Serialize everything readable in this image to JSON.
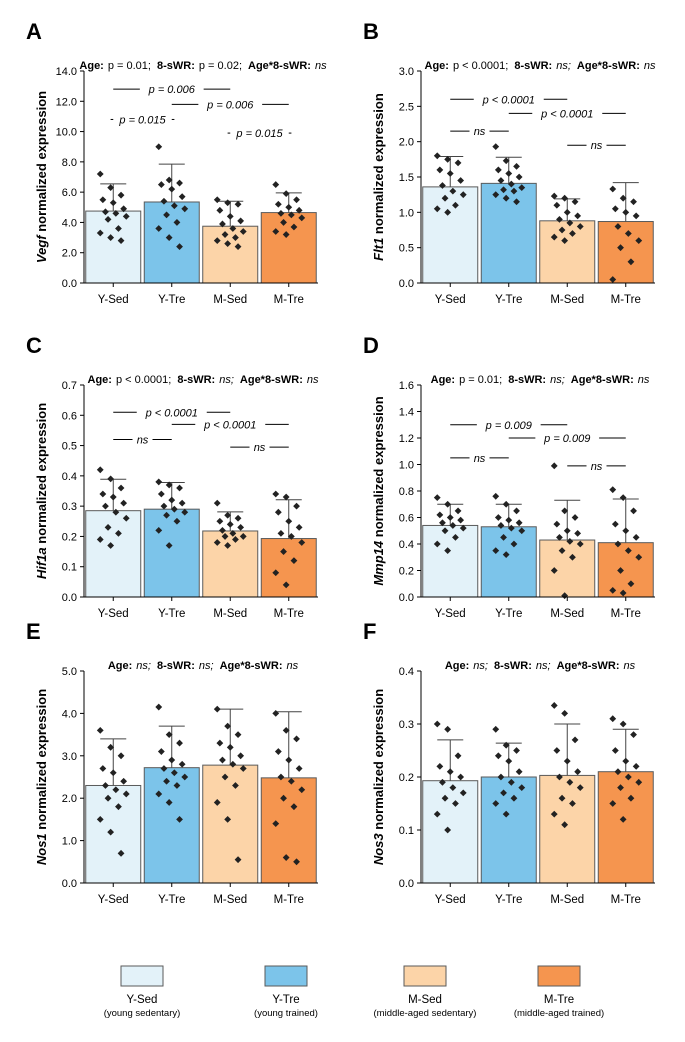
{
  "groups": [
    "Y-Sed",
    "Y-Tre",
    "M-Sed",
    "M-Tre"
  ],
  "legend": [
    {
      "name": "Y-Sed",
      "desc": "(young sedentary)"
    },
    {
      "name": "Y-Tre",
      "desc": "(young trained)"
    },
    {
      "name": "M-Sed",
      "desc": "(middle-aged sedentary)"
    },
    {
      "name": "M-Tre",
      "desc": "(middle-aged trained)"
    }
  ],
  "colors": {
    "Y-Sed": "#e3f2f9",
    "Y-Tre": "#7cc4ea",
    "M-Sed": "#fcd4a8",
    "M-Tre": "#f5954f",
    "points": "#222222",
    "axis": "#000000"
  },
  "chart_data": [
    {
      "panel": "A",
      "type": "bar",
      "gene": "Vegf",
      "ylabel_suffix": " normalized expression",
      "stats": [
        {
          "label": "Age:",
          "value": "p = 0.01;"
        },
        {
          "label": "8-sWR:",
          "value": "p = 0.02;"
        },
        {
          "label": "Age*8-sWR:",
          "value": "ns"
        }
      ],
      "ylim": [
        0,
        14
      ],
      "yticks": [
        0,
        2,
        4,
        6,
        8,
        10,
        12,
        14
      ],
      "tick_decimals": 1,
      "categories": [
        "Y-Sed",
        "Y-Tre",
        "M-Sed",
        "M-Tre"
      ],
      "values": [
        4.75,
        5.35,
        3.75,
        4.65
      ],
      "errors": [
        6.55,
        7.85,
        5.4,
        5.95
      ],
      "points": [
        [
          7.2,
          6.3,
          5.8,
          5.5,
          5.3,
          4.9,
          4.7,
          4.6,
          4.4,
          4.2,
          3.6,
          3.3,
          3.0,
          2.8
        ],
        [
          9.0,
          6.8,
          6.6,
          6.5,
          6.2,
          5.7,
          5.4,
          5.1,
          4.9,
          4.5,
          4.0,
          3.6,
          3.0,
          2.4
        ],
        [
          5.5,
          5.3,
          5.2,
          4.8,
          4.4,
          4.1,
          3.9,
          3.6,
          3.4,
          3.2,
          3.0,
          2.8,
          2.6,
          2.4
        ],
        [
          6.5,
          5.9,
          5.5,
          5.2,
          5.0,
          4.8,
          4.6,
          4.5,
          4.3,
          4.0,
          3.7,
          3.4,
          3.2
        ]
      ],
      "comparisons": [
        {
          "i": 0,
          "j": 2,
          "label": "p = 0.006",
          "y": 12.8
        },
        {
          "i": 1,
          "j": 3,
          "label": "p = 0.006",
          "y": 11.8
        },
        {
          "i": 0,
          "j": 1,
          "label": "p = 0.015",
          "y": 10.8
        },
        {
          "i": 2,
          "j": 3,
          "label": "p = 0.015",
          "y": 9.9
        }
      ]
    },
    {
      "panel": "B",
      "type": "bar",
      "gene": "Flt1",
      "ylabel_suffix": " normalized expression",
      "stats": [
        {
          "label": "Age:",
          "value": "p < 0.0001;"
        },
        {
          "label": "8-sWR:",
          "value": "ns;"
        },
        {
          "label": "Age*8-sWR:",
          "value": "ns"
        }
      ],
      "ylim": [
        0,
        3
      ],
      "yticks": [
        0,
        0.5,
        1,
        1.5,
        2,
        2.5,
        3
      ],
      "tick_decimals": 1,
      "categories": [
        "Y-Sed",
        "Y-Tre",
        "M-Sed",
        "M-Tre"
      ],
      "values": [
        1.36,
        1.41,
        0.88,
        0.87
      ],
      "errors": [
        1.79,
        1.78,
        1.19,
        1.42
      ],
      "points": [
        [
          1.8,
          1.75,
          1.7,
          1.6,
          1.55,
          1.45,
          1.38,
          1.3,
          1.25,
          1.2,
          1.1,
          1.05,
          1.0
        ],
        [
          1.93,
          1.73,
          1.65,
          1.6,
          1.55,
          1.5,
          1.45,
          1.4,
          1.35,
          1.32,
          1.3,
          1.25,
          1.2,
          1.15
        ],
        [
          1.23,
          1.2,
          1.15,
          1.1,
          1.0,
          0.95,
          0.9,
          0.85,
          0.8,
          0.75,
          0.7,
          0.65,
          0.6
        ],
        [
          1.33,
          1.2,
          1.15,
          1.05,
          1.0,
          0.95,
          0.8,
          0.7,
          0.6,
          0.5,
          0.3,
          0.05
        ]
      ],
      "comparisons": [
        {
          "i": 0,
          "j": 2,
          "label": "p < 0.0001",
          "y": 2.6
        },
        {
          "i": 1,
          "j": 3,
          "label": "p < 0.0001",
          "y": 2.4
        },
        {
          "i": 0,
          "j": 1,
          "label": "ns",
          "y": 2.15
        },
        {
          "i": 2,
          "j": 3,
          "label": "ns",
          "y": 1.95
        }
      ]
    },
    {
      "panel": "C",
      "type": "bar",
      "gene": "Hif1a",
      "ylabel_suffix": " normalized expression",
      "stats": [
        {
          "label": "Age:",
          "value": "p < 0.0001;"
        },
        {
          "label": "8-sWR:",
          "value": "ns;"
        },
        {
          "label": "Age*8-sWR:",
          "value": "ns"
        }
      ],
      "ylim": [
        0,
        0.7
      ],
      "yticks": [
        0,
        0.1,
        0.2,
        0.3,
        0.4,
        0.5,
        0.6,
        0.7
      ],
      "tick_decimals": 1,
      "categories": [
        "Y-Sed",
        "Y-Tre",
        "M-Sed",
        "M-Tre"
      ],
      "values": [
        0.285,
        0.29,
        0.218,
        0.193
      ],
      "errors": [
        0.389,
        0.378,
        0.281,
        0.321
      ],
      "points": [
        [
          0.42,
          0.39,
          0.36,
          0.34,
          0.33,
          0.31,
          0.3,
          0.28,
          0.26,
          0.23,
          0.21,
          0.19,
          0.17
        ],
        [
          0.38,
          0.37,
          0.36,
          0.34,
          0.32,
          0.31,
          0.3,
          0.29,
          0.28,
          0.27,
          0.25,
          0.22,
          0.17
        ],
        [
          0.31,
          0.27,
          0.26,
          0.25,
          0.24,
          0.23,
          0.22,
          0.21,
          0.2,
          0.2,
          0.19,
          0.18,
          0.17
        ],
        [
          0.34,
          0.33,
          0.3,
          0.28,
          0.25,
          0.23,
          0.21,
          0.2,
          0.18,
          0.15,
          0.12,
          0.08,
          0.04
        ]
      ],
      "comparisons": [
        {
          "i": 0,
          "j": 2,
          "label": "p < 0.0001",
          "y": 0.61
        },
        {
          "i": 1,
          "j": 3,
          "label": "p < 0.0001",
          "y": 0.57
        },
        {
          "i": 0,
          "j": 1,
          "label": "ns",
          "y": 0.52
        },
        {
          "i": 2,
          "j": 3,
          "label": "ns",
          "y": 0.495
        }
      ]
    },
    {
      "panel": "D",
      "type": "bar",
      "gene": "Mmp14",
      "ylabel_suffix": " normalized expression",
      "stats": [
        {
          "label": "Age:",
          "value": "p = 0.01;"
        },
        {
          "label": "8-sWR:",
          "value": "ns;"
        },
        {
          "label": "Age*8-sWR:",
          "value": "ns"
        }
      ],
      "ylim": [
        0,
        1.6
      ],
      "yticks": [
        0,
        0.2,
        0.4,
        0.6,
        0.8,
        1,
        1.2,
        1.4,
        1.6
      ],
      "tick_decimals": 1,
      "categories": [
        "Y-Sed",
        "Y-Tre",
        "M-Sed",
        "M-Tre"
      ],
      "values": [
        0.54,
        0.53,
        0.43,
        0.41
      ],
      "errors": [
        0.7,
        0.7,
        0.73,
        0.74
      ],
      "points": [
        [
          0.75,
          0.7,
          0.65,
          0.62,
          0.6,
          0.58,
          0.56,
          0.54,
          0.52,
          0.5,
          0.45,
          0.4,
          0.35
        ],
        [
          0.76,
          0.7,
          0.65,
          0.6,
          0.58,
          0.56,
          0.54,
          0.52,
          0.5,
          0.45,
          0.4,
          0.35,
          0.32
        ],
        [
          0.99,
          0.65,
          0.6,
          0.55,
          0.5,
          0.48,
          0.45,
          0.42,
          0.4,
          0.35,
          0.3,
          0.2,
          0.01
        ],
        [
          0.81,
          0.75,
          0.65,
          0.55,
          0.5,
          0.45,
          0.4,
          0.35,
          0.3,
          0.2,
          0.1,
          0.05,
          0.03
        ]
      ],
      "comparisons": [
        {
          "i": 0,
          "j": 2,
          "label": "p = 0.009",
          "y": 1.3
        },
        {
          "i": 1,
          "j": 3,
          "label": "p = 0.009",
          "y": 1.2
        },
        {
          "i": 0,
          "j": 1,
          "label": "ns",
          "y": 1.05
        },
        {
          "i": 2,
          "j": 3,
          "label": "ns",
          "y": 0.99
        }
      ]
    },
    {
      "panel": "E",
      "type": "bar",
      "gene": "Nos1",
      "ylabel_suffix": " normalized expression",
      "stats": [
        {
          "label": "Age:",
          "value": "ns;"
        },
        {
          "label": "8-sWR:",
          "value": "ns;"
        },
        {
          "label": "Age*8-sWR:",
          "value": "ns"
        }
      ],
      "ylim": [
        0,
        5
      ],
      "yticks": [
        0,
        1,
        2,
        3,
        4,
        5
      ],
      "tick_decimals": 1,
      "categories": [
        "Y-Sed",
        "Y-Tre",
        "M-Sed",
        "M-Tre"
      ],
      "values": [
        2.3,
        2.72,
        2.78,
        2.48
      ],
      "errors": [
        3.4,
        3.7,
        4.1,
        4.04
      ],
      "points": [
        [
          3.6,
          3.2,
          3.0,
          2.7,
          2.6,
          2.4,
          2.3,
          2.2,
          2.1,
          2.0,
          1.8,
          1.5,
          1.2,
          0.7
        ],
        [
          4.15,
          3.5,
          3.3,
          3.1,
          2.9,
          2.8,
          2.7,
          2.6,
          2.5,
          2.4,
          2.3,
          2.1,
          1.9,
          1.5
        ],
        [
          4.1,
          3.7,
          3.5,
          3.3,
          3.2,
          3.0,
          2.9,
          2.8,
          2.7,
          2.5,
          2.3,
          1.9,
          1.5,
          0.55
        ],
        [
          4.0,
          3.6,
          3.4,
          3.1,
          2.9,
          2.7,
          2.5,
          2.4,
          2.2,
          2.0,
          1.8,
          1.4,
          0.6,
          0.5
        ]
      ],
      "comparisons": []
    },
    {
      "panel": "F",
      "type": "bar",
      "gene": "Nos3",
      "ylabel_suffix": " normalized expression",
      "stats": [
        {
          "label": "Age:",
          "value": "ns;"
        },
        {
          "label": "8-sWR:",
          "value": "ns;"
        },
        {
          "label": "Age*8-sWR:",
          "value": "ns"
        }
      ],
      "ylim": [
        0,
        0.4
      ],
      "yticks": [
        0,
        0.1,
        0.2,
        0.3,
        0.4
      ],
      "tick_decimals": 1,
      "categories": [
        "Y-Sed",
        "Y-Tre",
        "M-Sed",
        "M-Tre"
      ],
      "values": [
        0.193,
        0.2,
        0.203,
        0.21
      ],
      "errors": [
        0.27,
        0.264,
        0.3,
        0.29
      ],
      "points": [
        [
          0.3,
          0.29,
          0.24,
          0.22,
          0.21,
          0.2,
          0.19,
          0.18,
          0.17,
          0.16,
          0.15,
          0.13,
          0.1
        ],
        [
          0.29,
          0.26,
          0.25,
          0.24,
          0.23,
          0.21,
          0.2,
          0.19,
          0.18,
          0.17,
          0.16,
          0.15,
          0.13
        ],
        [
          0.335,
          0.32,
          0.27,
          0.25,
          0.23,
          0.21,
          0.2,
          0.19,
          0.18,
          0.16,
          0.15,
          0.13,
          0.11
        ],
        [
          0.31,
          0.3,
          0.28,
          0.25,
          0.23,
          0.22,
          0.21,
          0.2,
          0.19,
          0.18,
          0.16,
          0.15,
          0.12
        ]
      ],
      "comparisons": []
    }
  ]
}
